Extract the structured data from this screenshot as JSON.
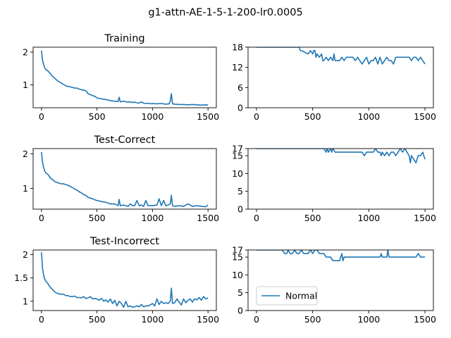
{
  "figure": {
    "suptitle": "g1-attn-AE-1-5-1-200-lr0.0005",
    "line_color": "#1f77b4"
  },
  "chart_data": [
    {
      "type": "line",
      "title": "Training",
      "xlim": [
        -75,
        1575
      ],
      "ylim": [
        0.3,
        2.15
      ],
      "xticks": [
        0,
        500,
        1000,
        1500
      ],
      "yticks": [
        1,
        2
      ],
      "series": [
        {
          "x": [
            0,
            10,
            20,
            30,
            40,
            50,
            60,
            70,
            80,
            90,
            100,
            120,
            140,
            160,
            180,
            200,
            220,
            240,
            260,
            280,
            300,
            320,
            340,
            360,
            380,
            400,
            420,
            440,
            460,
            480,
            500,
            540,
            580,
            620,
            660,
            690,
            700,
            710,
            740,
            780,
            800,
            820,
            840,
            860,
            880,
            900,
            920,
            940,
            960,
            980,
            1000,
            1040,
            1080,
            1120,
            1150,
            1160,
            1170,
            1180,
            1200,
            1240,
            1280,
            1320,
            1360,
            1400,
            1440,
            1480,
            1500
          ],
          "y": [
            2.05,
            1.75,
            1.62,
            1.52,
            1.47,
            1.44,
            1.42,
            1.38,
            1.34,
            1.3,
            1.26,
            1.2,
            1.14,
            1.09,
            1.05,
            1.01,
            0.97,
            0.95,
            0.94,
            0.92,
            0.9,
            0.9,
            0.87,
            0.85,
            0.84,
            0.82,
            0.73,
            0.7,
            0.67,
            0.65,
            0.6,
            0.57,
            0.55,
            0.52,
            0.5,
            0.49,
            0.62,
            0.48,
            0.5,
            0.47,
            0.48,
            0.46,
            0.47,
            0.45,
            0.44,
            0.48,
            0.44,
            0.43,
            0.44,
            0.42,
            0.43,
            0.42,
            0.43,
            0.41,
            0.42,
            0.5,
            0.73,
            0.42,
            0.41,
            0.4,
            0.4,
            0.39,
            0.4,
            0.39,
            0.38,
            0.39,
            0.38
          ]
        }
      ]
    },
    {
      "type": "line",
      "title": "",
      "xlim": [
        -75,
        1575
      ],
      "ylim": [
        0,
        18
      ],
      "xticks": [
        0,
        500,
        1000,
        1500
      ],
      "yticks": [
        0,
        6,
        12,
        18
      ],
      "series": [
        {
          "x": [
            0,
            380,
            390,
            400,
            460,
            480,
            500,
            510,
            520,
            530,
            540,
            560,
            580,
            590,
            600,
            620,
            640,
            660,
            680,
            690,
            700,
            710,
            720,
            740,
            760,
            780,
            800,
            820,
            840,
            860,
            880,
            900,
            920,
            940,
            960,
            980,
            1000,
            1020,
            1040,
            1060,
            1080,
            1100,
            1120,
            1140,
            1160,
            1180,
            1200,
            1220,
            1240,
            1260,
            1280,
            1300,
            1320,
            1340,
            1360,
            1380,
            1400,
            1420,
            1440,
            1460,
            1480,
            1500
          ],
          "y": [
            18,
            18,
            17,
            17,
            16,
            17,
            16,
            17,
            17,
            15,
            16,
            15,
            16,
            14,
            14,
            15,
            14,
            15,
            14,
            16,
            14,
            14,
            14,
            14,
            15,
            14,
            15,
            15,
            15,
            15,
            14,
            15,
            14,
            13,
            14,
            15,
            13,
            14,
            14,
            15,
            13,
            15,
            13,
            14,
            15,
            14,
            14,
            13,
            15,
            15,
            15,
            15,
            15,
            15,
            15,
            14,
            15,
            15,
            14,
            15,
            14,
            13
          ]
        }
      ]
    },
    {
      "type": "line",
      "title": "Test-Correct",
      "xlim": [
        -75,
        1575
      ],
      "ylim": [
        0.4,
        2.15
      ],
      "xticks": [
        0,
        500,
        1000,
        1500
      ],
      "yticks": [
        1,
        2
      ],
      "series": [
        {
          "x": [
            0,
            10,
            20,
            30,
            40,
            50,
            60,
            70,
            80,
            100,
            120,
            140,
            160,
            180,
            200,
            220,
            240,
            260,
            280,
            300,
            320,
            340,
            360,
            380,
            400,
            420,
            440,
            460,
            480,
            500,
            540,
            580,
            620,
            660,
            690,
            700,
            710,
            740,
            780,
            800,
            820,
            840,
            860,
            880,
            900,
            920,
            940,
            960,
            980,
            1000,
            1040,
            1060,
            1080,
            1100,
            1120,
            1140,
            1160,
            1170,
            1180,
            1200,
            1240,
            1280,
            1320,
            1360,
            1400,
            1440,
            1480,
            1500
          ],
          "y": [
            2.05,
            1.75,
            1.6,
            1.5,
            1.45,
            1.42,
            1.4,
            1.35,
            1.3,
            1.25,
            1.2,
            1.17,
            1.15,
            1.13,
            1.13,
            1.11,
            1.09,
            1.06,
            1.02,
            0.98,
            0.95,
            0.9,
            0.87,
            0.82,
            0.8,
            0.74,
            0.72,
            0.7,
            0.67,
            0.65,
            0.62,
            0.6,
            0.55,
            0.55,
            0.5,
            0.68,
            0.5,
            0.52,
            0.48,
            0.55,
            0.5,
            0.5,
            0.65,
            0.5,
            0.52,
            0.48,
            0.65,
            0.5,
            0.5,
            0.5,
            0.52,
            0.7,
            0.5,
            0.65,
            0.5,
            0.52,
            0.55,
            0.8,
            0.5,
            0.48,
            0.5,
            0.48,
            0.55,
            0.48,
            0.5,
            0.48,
            0.47,
            0.52
          ]
        }
      ]
    },
    {
      "type": "line",
      "title": "",
      "xlim": [
        -75,
        1575
      ],
      "ylim": [
        0,
        17
      ],
      "xticks": [
        0,
        500,
        1000,
        1500
      ],
      "yticks": [
        0,
        5,
        10,
        15,
        17
      ],
      "series": [
        {
          "x": [
            0,
            600,
            620,
            630,
            640,
            660,
            670,
            680,
            700,
            720,
            760,
            800,
            840,
            880,
            940,
            960,
            980,
            1000,
            1040,
            1060,
            1080,
            1100,
            1110,
            1120,
            1140,
            1160,
            1180,
            1200,
            1220,
            1240,
            1260,
            1280,
            1300,
            1320,
            1340,
            1360,
            1370,
            1380,
            1400,
            1420,
            1440,
            1460,
            1480,
            1500
          ],
          "y": [
            17,
            17,
            16,
            17,
            16,
            17,
            16,
            17,
            16,
            16,
            16,
            16,
            16,
            16,
            16,
            15,
            16,
            16,
            16,
            17,
            16,
            16,
            15,
            16,
            15,
            16,
            15,
            16,
            16,
            15,
            16,
            17,
            16,
            17,
            16,
            15,
            13,
            15,
            14,
            13,
            15,
            15,
            16,
            14
          ]
        }
      ]
    },
    {
      "type": "line",
      "title": "Test-Incorrect",
      "xlim": [
        -75,
        1575
      ],
      "ylim": [
        0.8,
        2.1
      ],
      "xticks": [
        0,
        500,
        1000,
        1500
      ],
      "yticks": [
        1.0,
        1.5,
        2.0
      ],
      "series": [
        {
          "x": [
            0,
            10,
            20,
            30,
            40,
            50,
            60,
            70,
            80,
            100,
            120,
            140,
            160,
            180,
            200,
            220,
            240,
            260,
            280,
            300,
            320,
            340,
            360,
            380,
            400,
            420,
            440,
            460,
            480,
            500,
            520,
            540,
            560,
            580,
            600,
            620,
            640,
            660,
            680,
            700,
            720,
            740,
            760,
            780,
            800,
            820,
            840,
            860,
            880,
            900,
            920,
            940,
            960,
            980,
            1000,
            1020,
            1040,
            1060,
            1080,
            1100,
            1120,
            1140,
            1160,
            1170,
            1180,
            1200,
            1220,
            1240,
            1260,
            1280,
            1300,
            1320,
            1340,
            1360,
            1380,
            1400,
            1420,
            1440,
            1460,
            1480,
            1500
          ],
          "y": [
            2.05,
            1.7,
            1.55,
            1.47,
            1.43,
            1.4,
            1.37,
            1.33,
            1.3,
            1.25,
            1.2,
            1.17,
            1.16,
            1.15,
            1.15,
            1.12,
            1.12,
            1.1,
            1.1,
            1.11,
            1.08,
            1.08,
            1.07,
            1.1,
            1.06,
            1.07,
            1.1,
            1.05,
            1.06,
            1.05,
            1.02,
            1.06,
            1.0,
            1.03,
            0.98,
            1.05,
            0.95,
            1.02,
            0.9,
            1.0,
            0.95,
            0.87,
            1.0,
            0.88,
            0.9,
            0.87,
            0.88,
            0.9,
            0.88,
            0.93,
            0.88,
            0.9,
            0.9,
            0.92,
            0.95,
            0.9,
            1.05,
            0.93,
            1.0,
            0.95,
            0.97,
            0.95,
            1.0,
            1.28,
            0.95,
            0.97,
            1.05,
            0.98,
            0.92,
            1.05,
            0.97,
            1.02,
            1.05,
            0.98,
            1.05,
            1.03,
            1.08,
            1.02,
            1.1,
            1.05,
            1.07
          ]
        }
      ]
    },
    {
      "type": "line",
      "title": "",
      "xlim": [
        -75,
        1575
      ],
      "ylim": [
        0,
        17
      ],
      "xticks": [
        0,
        500,
        1000,
        1500
      ],
      "yticks": [
        0,
        5,
        10,
        15,
        17
      ],
      "legend": {
        "entries": [
          "Normal"
        ],
        "placement": "lower-left"
      },
      "series": [
        {
          "name": "Normal",
          "x": [
            0,
            230,
            250,
            270,
            280,
            300,
            320,
            340,
            360,
            380,
            400,
            420,
            440,
            460,
            480,
            500,
            520,
            540,
            560,
            580,
            600,
            620,
            640,
            660,
            680,
            700,
            720,
            740,
            760,
            770,
            780,
            800,
            840,
            880,
            920,
            960,
            1000,
            1040,
            1080,
            1100,
            1110,
            1120,
            1140,
            1160,
            1170,
            1180,
            1200,
            1240,
            1280,
            1320,
            1360,
            1400,
            1420,
            1440,
            1460,
            1480,
            1500
          ],
          "y": [
            17,
            17,
            16,
            16,
            17,
            16,
            16,
            17,
            16,
            16,
            17,
            16,
            16,
            16,
            17,
            16,
            17,
            17,
            16,
            16,
            16,
            15,
            15,
            15,
            14,
            14,
            14,
            14,
            16,
            14,
            15,
            15,
            15,
            15,
            15,
            15,
            15,
            15,
            15,
            15,
            16,
            15,
            15,
            15,
            17,
            15,
            15,
            15,
            15,
            15,
            15,
            15,
            15,
            16,
            15,
            15,
            15
          ]
        }
      ]
    }
  ]
}
